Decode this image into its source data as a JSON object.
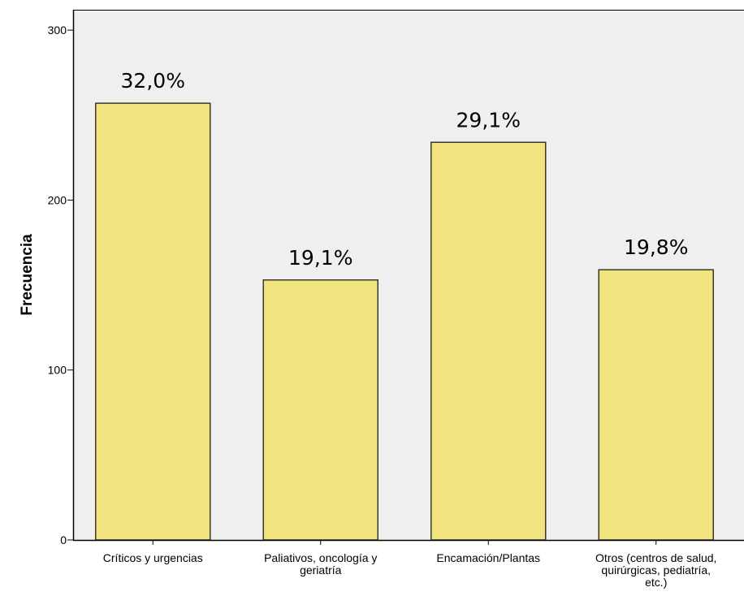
{
  "chart_data": {
    "type": "bar",
    "categories": [
      [
        "Críticos y urgencias"
      ],
      [
        "Paliativos, oncología y",
        "geriatría"
      ],
      [
        "Encamación/Plantas"
      ],
      [
        "Otros (centros de salud,",
        "quirúrgicas, pediatría,",
        "etc.)"
      ]
    ],
    "values": [
      257,
      153,
      234,
      159
    ],
    "data_labels": [
      "32,0%",
      "19,1%",
      "29,1%",
      "19,8%"
    ],
    "ylabel": "Frecuencia",
    "xlabel": "",
    "ylim": [
      0,
      312
    ],
    "yticks": [
      0,
      100,
      200,
      300
    ],
    "grid": false,
    "colors": {
      "plot_background": "#efefef",
      "bar_fill": "#f1e37f",
      "bar_stroke": "#3a3a2a",
      "axis": "#000000"
    }
  }
}
